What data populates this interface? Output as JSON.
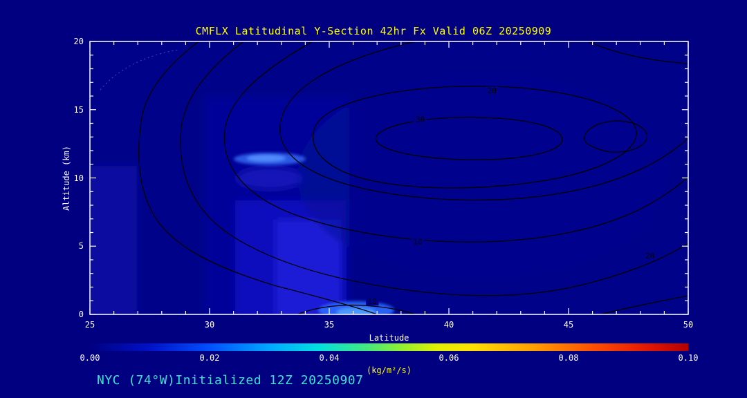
{
  "colors": {
    "background": "#000080",
    "title_text": "#ffff00",
    "axis_text": "#ffffff",
    "contour_line": "#000000",
    "footer_text": "#40e0d0",
    "unit_text": "#ffff00"
  },
  "chart_data": {
    "type": "contour",
    "title": "CMFLX Latitudinal Y-Section 42hr  Fx Valid 06Z 20250909",
    "xlabel": "Latitude",
    "ylabel": "Altitude (km)",
    "xlim": [
      25,
      50
    ],
    "ylim": [
      0,
      20
    ],
    "x_ticks": [
      25,
      30,
      35,
      40,
      45,
      50
    ],
    "x_minor_step": 1,
    "y_ticks": [
      0,
      5,
      10,
      15,
      20
    ],
    "y_minor_step": 1,
    "contour_levels": [
      10,
      20,
      30,
      40
    ],
    "contour_labels": [
      {
        "text": "30",
        "lat": 38.8,
        "alt": 14.3
      },
      {
        "text": "20",
        "lat": 41.8,
        "alt": 16.4
      },
      {
        "text": "20",
        "lat": 48.4,
        "alt": 4.3
      },
      {
        "text": "10",
        "lat": 38.7,
        "alt": 5.35
      },
      {
        "text": "10",
        "lat": 36.8,
        "alt": 0.95
      }
    ],
    "colorbar": {
      "min": 0.0,
      "max": 0.1,
      "tick_labels": [
        "0.00",
        "0.02",
        "0.04",
        "0.06",
        "0.08",
        "0.10"
      ],
      "unit": "(kg/m²/s)",
      "gradient": [
        [
          "0",
          "#000080"
        ],
        [
          "0.10",
          "#0012c8"
        ],
        [
          "0.20",
          "#0050ff"
        ],
        [
          "0.30",
          "#00a8ff"
        ],
        [
          "0.38",
          "#00e0e0"
        ],
        [
          "0.46",
          "#40e880"
        ],
        [
          "0.52",
          "#90ee30"
        ],
        [
          "0.58",
          "#e0f000"
        ],
        [
          "0.64",
          "#ffe000"
        ],
        [
          "0.74",
          "#ffa000"
        ],
        [
          "0.84",
          "#ff5000"
        ],
        [
          "0.93",
          "#e41800"
        ],
        [
          "1",
          "#b40000"
        ]
      ]
    },
    "annotations": {
      "footer": "NYC (74°W)Initialized 12Z 20250907"
    }
  }
}
